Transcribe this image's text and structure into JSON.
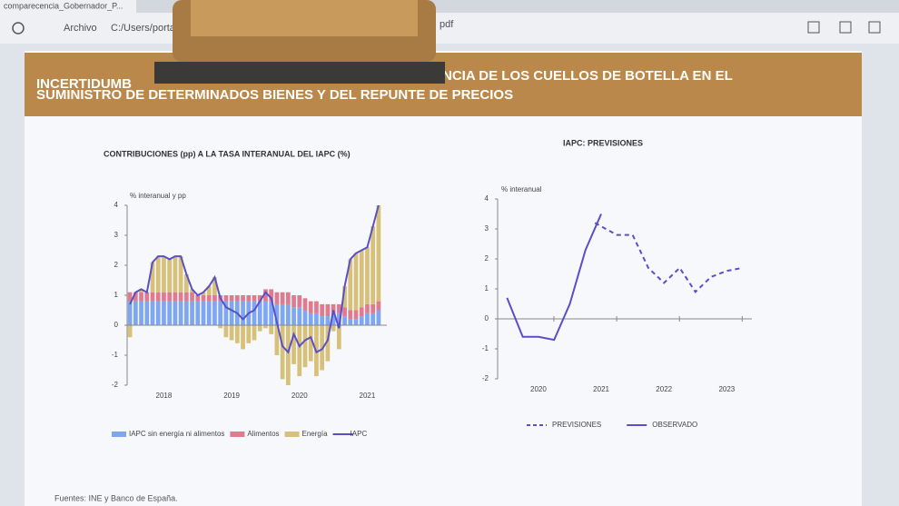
{
  "browser": {
    "tab": "comparecencia_Gobernador_P...",
    "address_label": "Archivo",
    "address": "C:/Users/porta",
    "address_end": "pdf"
  },
  "slide": {
    "title_start": "INCERTIDUMB",
    "title_line1": "NCIA DE LOS CUELLOS DE BOTELLA  EN EL",
    "title_line2": "SUMINISTRO DE DETERMINADOS BIENES Y DEL REPUNTE DE PRECIOS",
    "source": "Fuentes: INE y Banco de España."
  },
  "chart_data": [
    {
      "type": "bar",
      "stacked": true,
      "title": "CONTRIBUCIONES (pp) A LA TASA INTERANUAL DEL IAPC (%)",
      "y_label": "% interanual y pp",
      "categories": [
        null,
        null,
        null,
        null,
        null,
        null,
        "2018",
        null,
        null,
        null,
        null,
        null,
        null,
        null,
        null,
        null,
        null,
        null,
        "2019",
        null,
        null,
        null,
        null,
        null,
        null,
        null,
        null,
        null,
        null,
        null,
        "2020",
        null,
        null,
        null,
        null,
        null,
        null,
        null,
        null,
        null,
        null,
        null,
        "2021",
        null,
        null
      ],
      "ylim": [
        -2,
        4
      ],
      "yticks": [
        -2,
        -1,
        0,
        1,
        2,
        3,
        4
      ],
      "series": [
        {
          "name": "IAPC sin energía ni alimentos",
          "color": "#7fa6f0",
          "values": [
            0.8,
            0.8,
            0.8,
            0.8,
            0.8,
            0.8,
            0.8,
            0.8,
            0.8,
            0.8,
            0.8,
            0.8,
            0.8,
            0.8,
            0.8,
            0.8,
            0.8,
            0.8,
            0.8,
            0.8,
            0.8,
            0.8,
            0.8,
            0.8,
            0.8,
            0.8,
            0.7,
            0.7,
            0.7,
            0.6,
            0.6,
            0.5,
            0.4,
            0.4,
            0.3,
            0.3,
            0.4,
            0.4,
            0.3,
            0.2,
            0.2,
            0.3,
            0.4,
            0.4,
            0.5
          ]
        },
        {
          "name": "Alimentos",
          "color": "#e07a8f",
          "values": [
            0.3,
            0.3,
            0.3,
            0.3,
            0.3,
            0.3,
            0.3,
            0.3,
            0.3,
            0.3,
            0.3,
            0.3,
            0.2,
            0.2,
            0.2,
            0.2,
            0.2,
            0.2,
            0.2,
            0.2,
            0.2,
            0.2,
            0.2,
            0.2,
            0.4,
            0.4,
            0.4,
            0.4,
            0.4,
            0.4,
            0.4,
            0.4,
            0.4,
            0.4,
            0.4,
            0.4,
            0.3,
            0.3,
            0.3,
            0.3,
            0.3,
            0.3,
            0.3,
            0.3,
            0.3
          ]
        },
        {
          "name": "Energía",
          "color": "#d7c07a",
          "values": [
            -0.4,
            0.0,
            0.1,
            0.0,
            1.0,
            1.2,
            1.2,
            1.1,
            1.2,
            1.2,
            0.6,
            0.1,
            0.0,
            0.1,
            0.3,
            0.6,
            -0.1,
            -0.4,
            -0.5,
            -0.6,
            -0.8,
            -0.6,
            -0.5,
            -0.2,
            -0.1,
            -0.3,
            -1.0,
            -1.8,
            -2.0,
            -1.3,
            -1.7,
            -1.4,
            -1.2,
            -1.7,
            -1.5,
            -1.2,
            -0.2,
            -0.8,
            0.7,
            1.7,
            1.9,
            1.9,
            1.9,
            2.6,
            3.2
          ]
        },
        {
          "name": "IAPC",
          "color": "#5a4fc8",
          "type": "line",
          "values": [
            0.7,
            1.1,
            1.2,
            1.1,
            2.1,
            2.3,
            2.3,
            2.2,
            2.3,
            2.3,
            1.7,
            1.2,
            1.0,
            1.1,
            1.3,
            1.6,
            0.9,
            0.6,
            0.5,
            0.4,
            0.2,
            0.4,
            0.5,
            0.8,
            1.1,
            0.9,
            0.1,
            -0.7,
            -0.9,
            -0.3,
            -0.7,
            -0.5,
            -0.4,
            -0.9,
            -0.8,
            -0.5,
            0.5,
            -0.1,
            1.3,
            2.2,
            2.4,
            2.5,
            2.6,
            3.3,
            4.0
          ]
        }
      ]
    },
    {
      "type": "line",
      "title": "IAPC: PREVISIONES",
      "y_label": "% interanual",
      "xlim": [
        2019.35,
        2023.4
      ],
      "xticks": [
        2020,
        2021,
        2022,
        2023
      ],
      "ylim": [
        -2,
        4
      ],
      "yticks": [
        -2,
        -1,
        0,
        1,
        2,
        3,
        4
      ],
      "series": [
        {
          "name": "PREVISIONES",
          "color": "#5a4fc8",
          "dashed": true,
          "x": [
            2020.9,
            2021.25,
            2021.5,
            2021.75,
            2022.0,
            2022.25,
            2022.5,
            2022.75,
            2023.0,
            2023.25
          ],
          "values": [
            3.2,
            2.8,
            2.8,
            1.7,
            1.2,
            1.7,
            0.9,
            1.4,
            1.6,
            1.7
          ]
        },
        {
          "name": "OBSERVADO",
          "color": "#5a4fc8",
          "dashed": false,
          "x": [
            2019.5,
            2019.75,
            2020.0,
            2020.25,
            2020.5,
            2020.75,
            2021.0
          ],
          "values": [
            0.7,
            -0.6,
            -0.6,
            -0.7,
            0.5,
            2.3,
            3.5
          ]
        }
      ]
    }
  ]
}
